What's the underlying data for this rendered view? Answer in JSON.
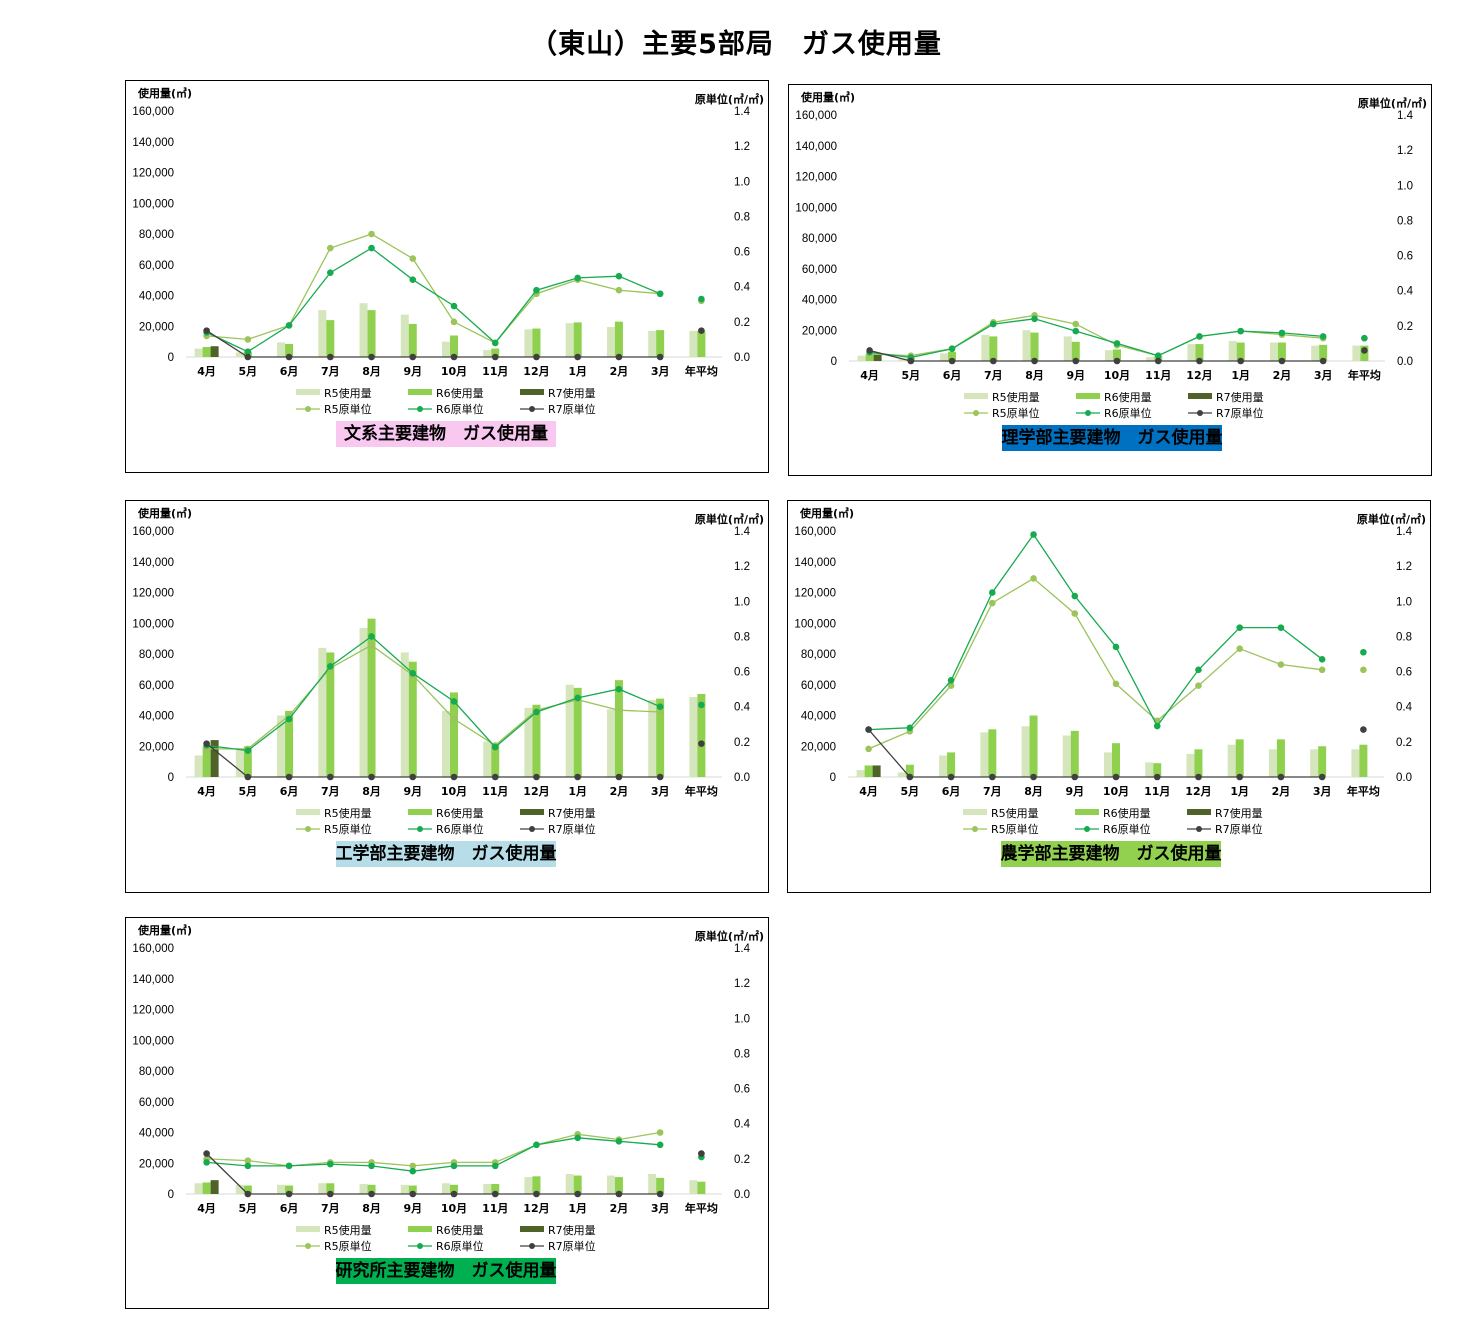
{
  "page": {
    "title": "（東山）主要5部局　ガス使用量"
  },
  "common": {
    "categories": [
      "4月",
      "5月",
      "6月",
      "7月",
      "8月",
      "9月",
      "10月",
      "11月",
      "12月",
      "1月",
      "2月",
      "3月",
      "年平均"
    ],
    "left_axis_label": "使用量(㎥)",
    "right_axis_label": "原単位(㎥/㎡)",
    "left_ticks": [
      "0",
      "20,000",
      "40,000",
      "60,000",
      "80,000",
      "100,000",
      "120,000",
      "140,000",
      "160,000"
    ],
    "right_ticks": [
      "0.0",
      "0.2",
      "0.4",
      "0.6",
      "0.8",
      "1.0",
      "1.2",
      "1.4"
    ],
    "legend": {
      "r5_usage": "R5使用量",
      "r6_usage": "R6使用量",
      "r7_usage": "R7使用量",
      "r5_unit": "R5原単位",
      "r6_unit": "R6原単位",
      "r7_unit": "R7原単位"
    },
    "colors": {
      "r5_bar": "#d5e6bc",
      "r6_bar": "#8fd14f",
      "r7_bar": "#4f6228",
      "r5_line": "#9bc45a",
      "r6_line": "#16ab50",
      "r7_line": "#404040"
    }
  },
  "chart_data": [
    {
      "type": "bar",
      "title": "文系主要建物　ガス使用量",
      "caption_bg": "#f9c8f1",
      "caption_color": "#000000",
      "ylim": [
        0,
        160000
      ],
      "y2lim": [
        0,
        1.4
      ],
      "series": [
        {
          "name": "R5使用量",
          "axis": "left",
          "kind": "bar",
          "values": [
            5500,
            3000,
            9500,
            30500,
            35000,
            27500,
            10000,
            4500,
            18000,
            22000,
            19500,
            17000,
            17000
          ]
        },
        {
          "name": "R6使用量",
          "axis": "left",
          "kind": "bar",
          "values": [
            6500,
            3500,
            8500,
            24000,
            30500,
            21500,
            14000,
            5500,
            18500,
            22500,
            23000,
            17500,
            17000
          ]
        },
        {
          "name": "R7使用量",
          "axis": "left",
          "kind": "bar",
          "values": [
            7000,
            null,
            null,
            null,
            null,
            null,
            null,
            null,
            null,
            null,
            null,
            null,
            null
          ]
        },
        {
          "name": "R5原単位",
          "axis": "right",
          "kind": "line",
          "values": [
            0.12,
            0.1,
            0.18,
            0.62,
            0.7,
            0.56,
            0.2,
            0.08,
            0.36,
            0.44,
            0.38,
            0.36,
            0.32
          ]
        },
        {
          "name": "R6原単位",
          "axis": "right",
          "kind": "line",
          "values": [
            0.14,
            0.03,
            0.18,
            0.48,
            0.62,
            0.44,
            0.29,
            0.08,
            0.38,
            0.45,
            0.46,
            0.36,
            0.33
          ]
        },
        {
          "name": "R7原単位",
          "axis": "right",
          "kind": "line",
          "values": [
            0.15,
            0.0,
            0.0,
            0.0,
            0.0,
            0.0,
            0.0,
            0.0,
            0.0,
            0.0,
            0.0,
            0.0,
            0.15
          ]
        }
      ]
    },
    {
      "type": "bar",
      "title": "理学部主要建物　ガス使用量",
      "caption_bg": "#0070c0",
      "caption_color": "#000000",
      "ylim": [
        0,
        160000
      ],
      "y2lim": [
        0,
        1.4
      ],
      "series": [
        {
          "name": "R5使用量",
          "axis": "left",
          "kind": "bar",
          "values": [
            3500,
            1500,
            5000,
            17000,
            20000,
            16000,
            7000,
            2500,
            11000,
            13000,
            12000,
            10000,
            10000
          ]
        },
        {
          "name": "R6使用量",
          "axis": "left",
          "kind": "bar",
          "values": [
            4500,
            2000,
            6000,
            16000,
            18500,
            12500,
            7500,
            3000,
            11000,
            12000,
            12000,
            10500,
            10000
          ]
        },
        {
          "name": "R7使用量",
          "axis": "left",
          "kind": "bar",
          "values": [
            4000,
            null,
            null,
            null,
            null,
            null,
            null,
            null,
            null,
            null,
            null,
            null,
            null
          ]
        },
        {
          "name": "R5原単位",
          "axis": "right",
          "kind": "line",
          "values": [
            0.04,
            0.03,
            0.07,
            0.22,
            0.26,
            0.21,
            0.09,
            0.03,
            0.14,
            0.17,
            0.15,
            0.13,
            0.13
          ]
        },
        {
          "name": "R6原単位",
          "axis": "right",
          "kind": "line",
          "values": [
            0.05,
            0.02,
            0.07,
            0.21,
            0.24,
            0.17,
            0.1,
            0.03,
            0.14,
            0.17,
            0.16,
            0.14,
            0.13
          ]
        },
        {
          "name": "R7原単位",
          "axis": "right",
          "kind": "line",
          "values": [
            0.06,
            0.0,
            0.0,
            0.0,
            0.0,
            0.0,
            0.0,
            0.0,
            0.0,
            0.0,
            0.0,
            0.0,
            0.06
          ]
        }
      ]
    },
    {
      "type": "bar",
      "title": "工学部主要建物　ガス使用量",
      "caption_bg": "#b7dde8",
      "caption_color": "#000000",
      "ylim": [
        0,
        160000
      ],
      "y2lim": [
        0,
        1.4
      ],
      "series": [
        {
          "name": "R5使用量",
          "axis": "left",
          "kind": "bar",
          "values": [
            14000,
            18000,
            40000,
            84000,
            97000,
            81000,
            43000,
            23000,
            45000,
            60000,
            44000,
            50000,
            52000
          ]
        },
        {
          "name": "R6使用量",
          "axis": "left",
          "kind": "bar",
          "values": [
            20000,
            20000,
            43000,
            81000,
            103000,
            75000,
            55000,
            22000,
            47000,
            58000,
            63000,
            51000,
            54000
          ]
        },
        {
          "name": "R7使用量",
          "axis": "left",
          "kind": "bar",
          "values": [
            24000,
            null,
            null,
            null,
            null,
            null,
            null,
            null,
            null,
            null,
            null,
            null,
            null
          ]
        },
        {
          "name": "R5原単位",
          "axis": "right",
          "kind": "line",
          "values": [
            0.16,
            0.16,
            0.35,
            0.62,
            0.75,
            0.58,
            0.33,
            0.18,
            0.38,
            0.44,
            0.38,
            0.37,
            0.42
          ]
        },
        {
          "name": "R6原単位",
          "axis": "right",
          "kind": "line",
          "values": [
            0.18,
            0.15,
            0.33,
            0.63,
            0.8,
            0.59,
            0.43,
            0.17,
            0.37,
            0.45,
            0.5,
            0.4,
            0.41
          ]
        },
        {
          "name": "R7原単位",
          "axis": "right",
          "kind": "line",
          "values": [
            0.19,
            0.0,
            0.0,
            0.0,
            0.0,
            0.0,
            0.0,
            0.0,
            0.0,
            0.0,
            0.0,
            0.0,
            0.19
          ]
        }
      ]
    },
    {
      "type": "bar",
      "title": "農学部主要建物　ガス使用量",
      "caption_bg": "#92d050",
      "caption_color": "#000000",
      "ylim": [
        0,
        160000
      ],
      "y2lim": [
        0,
        1.4
      ],
      "series": [
        {
          "name": "R5使用量",
          "axis": "left",
          "kind": "bar",
          "values": [
            4500,
            3000,
            14000,
            29000,
            33000,
            27000,
            16000,
            9500,
            15000,
            21000,
            18000,
            18000,
            18000
          ]
        },
        {
          "name": "R6使用量",
          "axis": "left",
          "kind": "bar",
          "values": [
            7500,
            8000,
            16000,
            31000,
            40000,
            30000,
            22000,
            9000,
            18000,
            24500,
            24500,
            20000,
            21000
          ]
        },
        {
          "name": "R7使用量",
          "axis": "left",
          "kind": "bar",
          "values": [
            7500,
            null,
            null,
            null,
            null,
            null,
            null,
            null,
            null,
            null,
            null,
            null,
            null
          ]
        },
        {
          "name": "R5原単位",
          "axis": "right",
          "kind": "line",
          "values": [
            0.16,
            0.26,
            0.52,
            0.99,
            1.13,
            0.93,
            0.53,
            0.32,
            0.52,
            0.73,
            0.64,
            0.61,
            0.61
          ]
        },
        {
          "name": "R6原単位",
          "axis": "right",
          "kind": "line",
          "values": [
            0.27,
            0.28,
            0.55,
            1.05,
            1.38,
            1.03,
            0.74,
            0.29,
            0.61,
            0.85,
            0.85,
            0.67,
            0.71
          ]
        },
        {
          "name": "R7原単位",
          "axis": "right",
          "kind": "line",
          "values": [
            0.27,
            0.0,
            0.0,
            0.0,
            0.0,
            0.0,
            0.0,
            0.0,
            0.0,
            0.0,
            0.0,
            0.0,
            0.27
          ]
        }
      ]
    },
    {
      "type": "bar",
      "title": "研究所主要建物　ガス使用量",
      "caption_bg": "#00b050",
      "caption_color": "#000000",
      "ylim": [
        0,
        160000
      ],
      "y2lim": [
        0,
        1.4
      ],
      "series": [
        {
          "name": "R5使用量",
          "axis": "left",
          "kind": "bar",
          "values": [
            7000,
            6000,
            6000,
            7000,
            6500,
            6000,
            7000,
            6500,
            11000,
            13000,
            12000,
            13000,
            9000
          ]
        },
        {
          "name": "R6使用量",
          "axis": "left",
          "kind": "bar",
          "values": [
            7500,
            5500,
            5500,
            7000,
            6000,
            5500,
            6000,
            6500,
            11500,
            12000,
            11000,
            10500,
            8000
          ]
        },
        {
          "name": "R7使用量",
          "axis": "left",
          "kind": "bar",
          "values": [
            9000,
            null,
            null,
            null,
            null,
            null,
            null,
            null,
            null,
            null,
            null,
            null,
            null
          ]
        },
        {
          "name": "R5原単位",
          "axis": "right",
          "kind": "line",
          "values": [
            0.2,
            0.19,
            0.16,
            0.18,
            0.18,
            0.16,
            0.18,
            0.18,
            0.28,
            0.34,
            0.31,
            0.35,
            0.23
          ]
        },
        {
          "name": "R6原単位",
          "axis": "right",
          "kind": "line",
          "values": [
            0.18,
            0.16,
            0.16,
            0.17,
            0.16,
            0.13,
            0.16,
            0.16,
            0.28,
            0.32,
            0.3,
            0.28,
            0.21
          ]
        },
        {
          "name": "R7原単位",
          "axis": "right",
          "kind": "line",
          "values": [
            0.23,
            0.0,
            0.0,
            0.0,
            0.0,
            0.0,
            0.0,
            0.0,
            0.0,
            0.0,
            0.0,
            0.0,
            0.23
          ]
        }
      ]
    }
  ]
}
